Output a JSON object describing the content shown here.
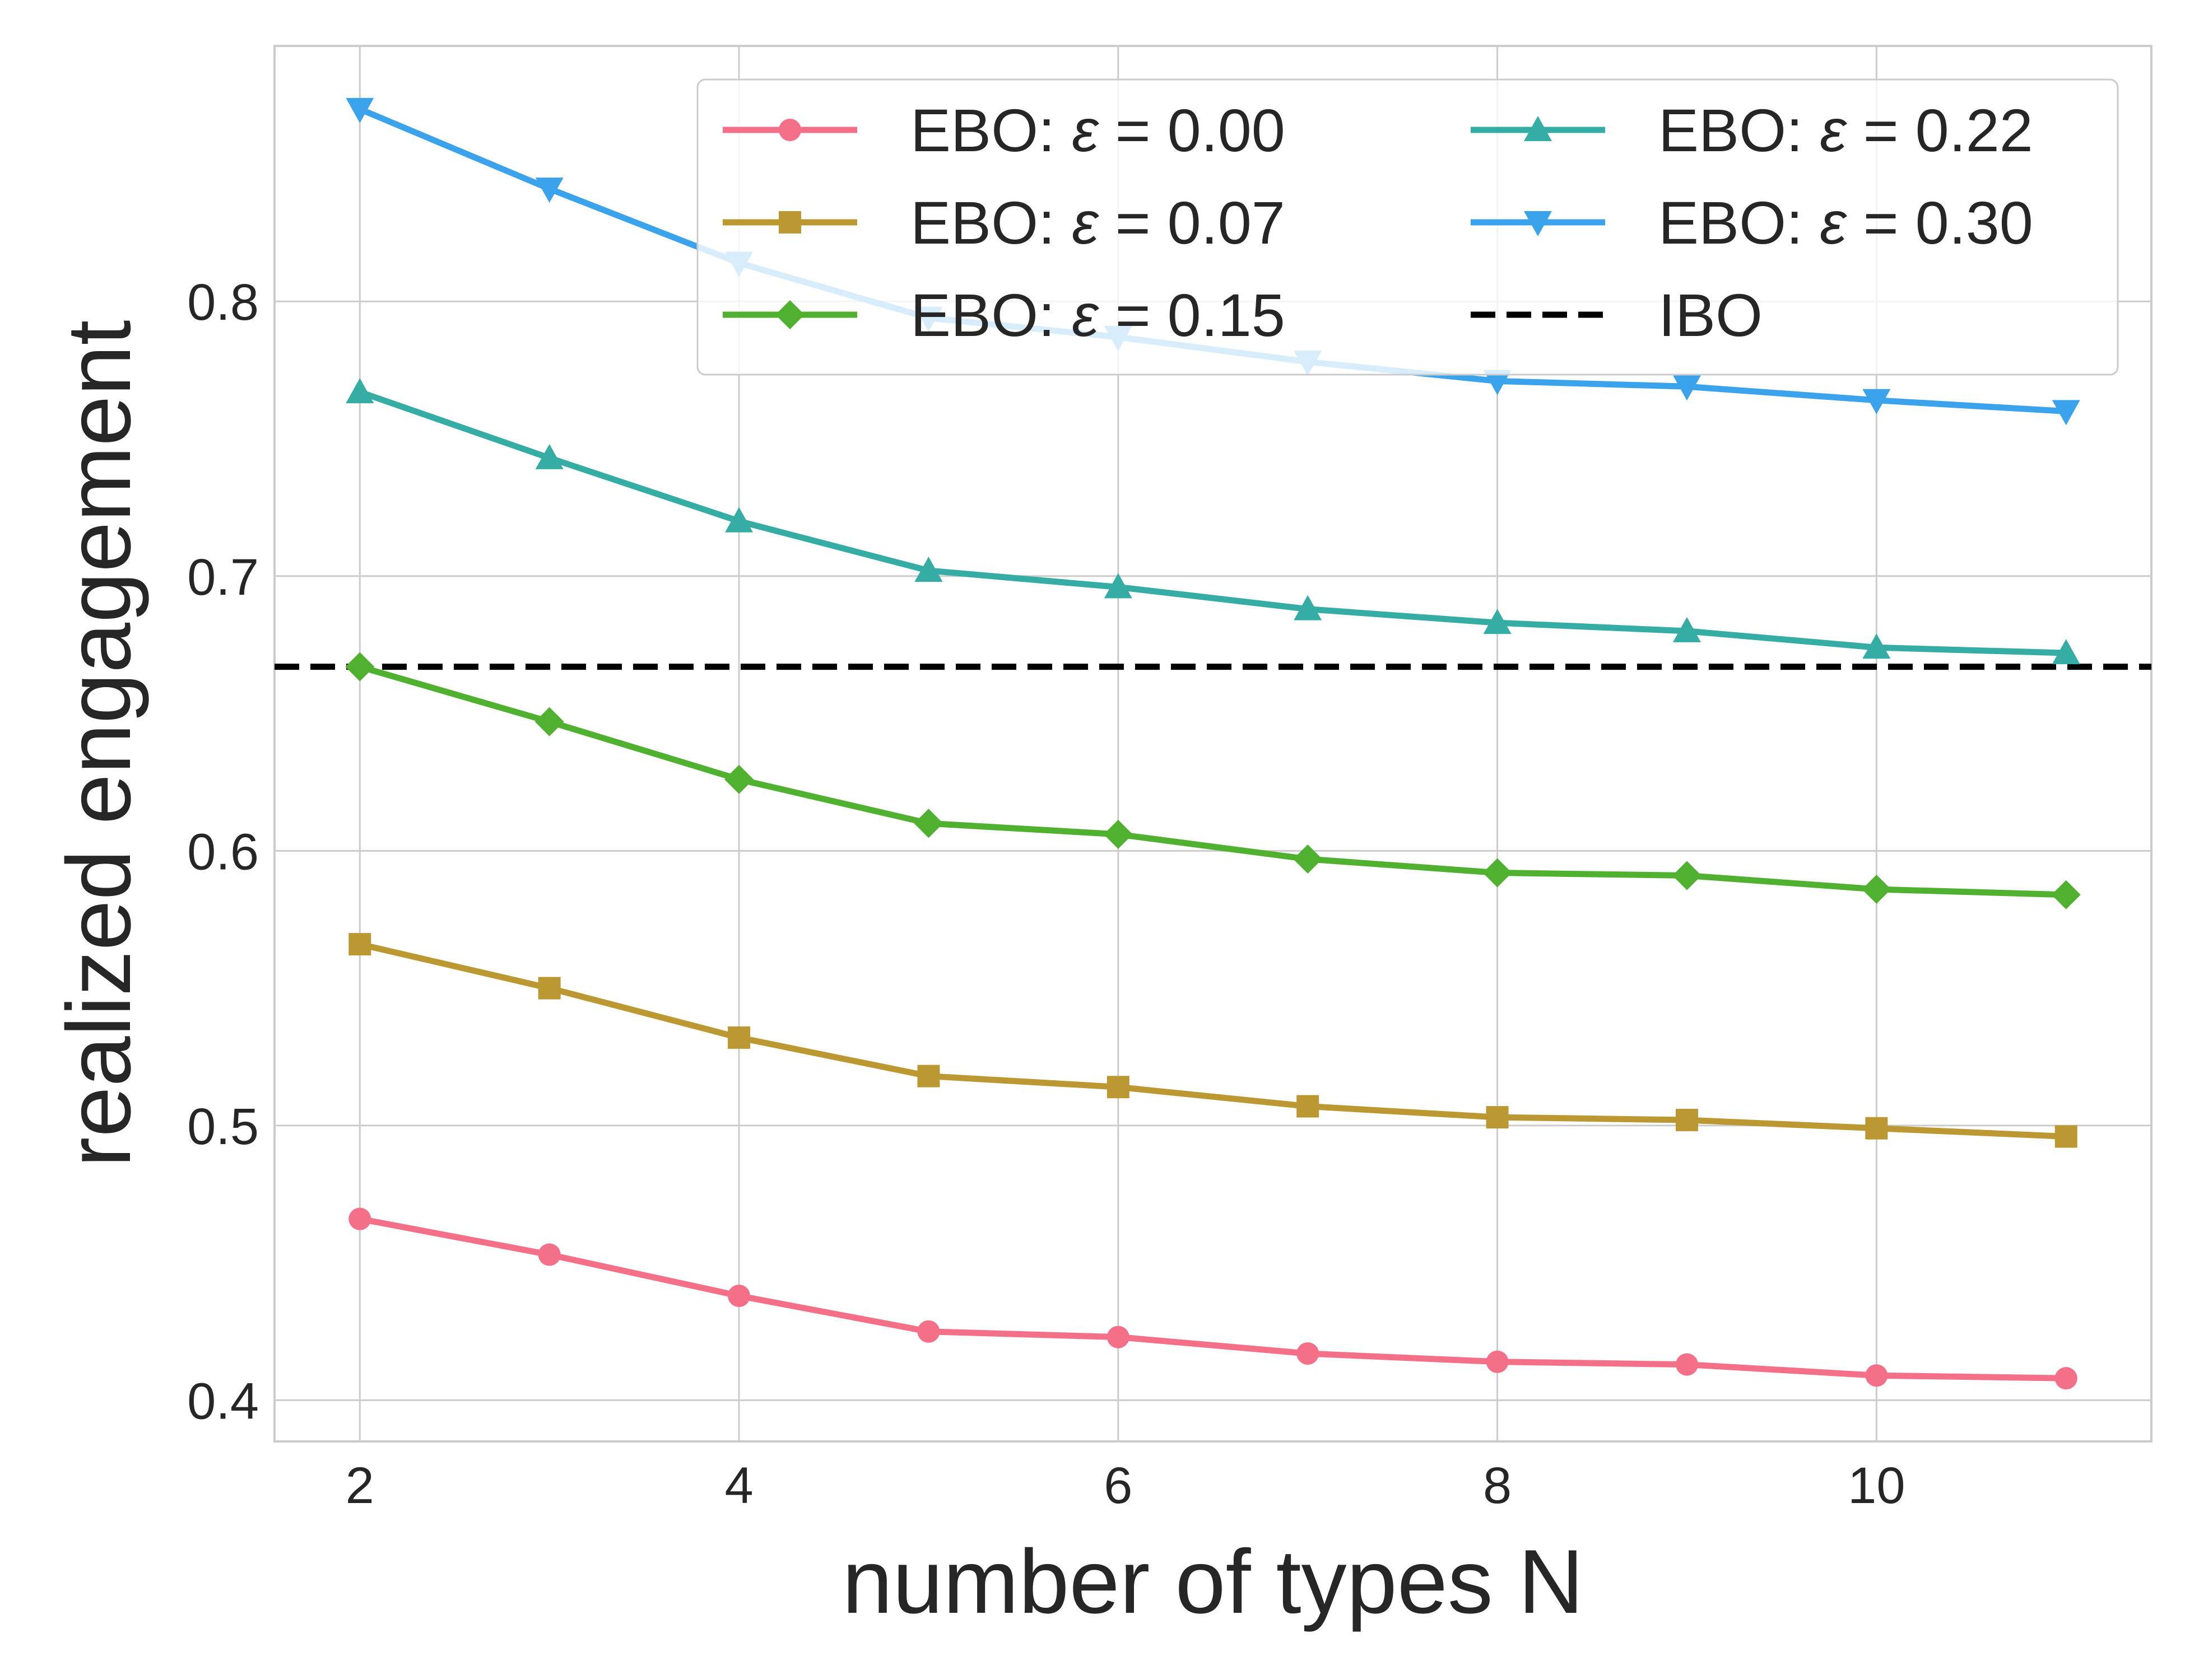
{
  "chart_data": {
    "type": "line",
    "title": "",
    "xlabel": "number of types N",
    "ylabel": "realized engagement",
    "x": [
      2,
      3,
      4,
      5,
      6,
      7,
      8,
      9,
      10,
      11
    ],
    "xlim": [
      1.55,
      11.45
    ],
    "ylim": [
      0.385,
      0.893
    ],
    "xticks": [
      "2",
      "4",
      "6",
      "8",
      "10"
    ],
    "xtick_values": [
      2,
      4,
      6,
      8,
      10
    ],
    "yticks": [
      "0.4",
      "0.5",
      "0.6",
      "0.7",
      "0.8"
    ],
    "ytick_values": [
      0.4,
      0.5,
      0.6,
      0.7,
      0.8
    ],
    "grid": true,
    "legend_position": "top-right",
    "series": [
      {
        "name": "EBO: ε = 0.00",
        "eps_prefix": "EBO: ",
        "eps_value": "0.00",
        "color": "#f37088",
        "marker": "circle",
        "values": [
          0.466,
          0.453,
          0.438,
          0.425,
          0.423,
          0.417,
          0.414,
          0.413,
          0.409,
          0.408
        ]
      },
      {
        "name": "EBO: ε = 0.07",
        "eps_prefix": "EBO: ",
        "eps_value": "0.07",
        "color": "#bb9832",
        "marker": "square",
        "values": [
          0.566,
          0.55,
          0.532,
          0.518,
          0.514,
          0.507,
          0.503,
          0.502,
          0.499,
          0.496
        ]
      },
      {
        "name": "EBO: ε = 0.15",
        "eps_prefix": "EBO: ",
        "eps_value": "0.15",
        "color": "#50b131",
        "marker": "diamond",
        "values": [
          0.667,
          0.647,
          0.626,
          0.61,
          0.606,
          0.597,
          0.592,
          0.591,
          0.586,
          0.584
        ]
      },
      {
        "name": "EBO: ε = 0.22",
        "eps_prefix": "EBO: ",
        "eps_value": "0.22",
        "color": "#36ada4",
        "marker": "triangle-up",
        "values": [
          0.767,
          0.743,
          0.72,
          0.702,
          0.696,
          0.688,
          0.683,
          0.68,
          0.674,
          0.672
        ]
      },
      {
        "name": "EBO: ε = 0.30",
        "eps_prefix": "EBO: ",
        "eps_value": "0.30",
        "color": "#3ba3ec",
        "marker": "triangle-down",
        "values": [
          0.87,
          0.841,
          0.814,
          0.794,
          0.787,
          0.778,
          0.771,
          0.769,
          0.764,
          0.76
        ]
      }
    ],
    "reference_line": {
      "name": "IBO",
      "value": 0.667,
      "color": "#000000",
      "style": "dashed"
    }
  }
}
